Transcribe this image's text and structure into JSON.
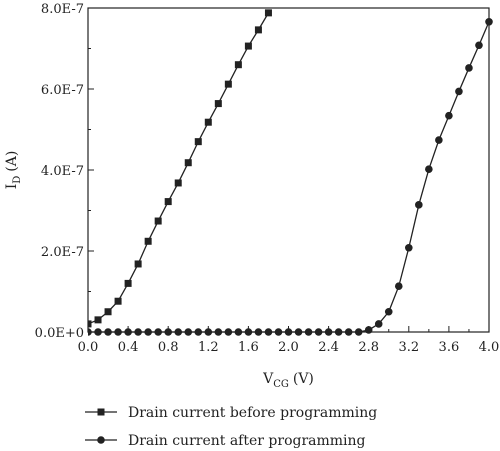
{
  "chart_data": {
    "type": "line",
    "title": "",
    "xlabel": "V_CG (V)",
    "xlabel_main": "V",
    "xlabel_sub": "CG",
    "xlabel_unit": "(V)",
    "ylabel": "I_D (A)",
    "ylabel_main": "I",
    "ylabel_sub": "D",
    "ylabel_unit": "(A)",
    "xlim": [
      0.0,
      4.0
    ],
    "ylim": [
      0.0,
      8e-07
    ],
    "x_ticks": [
      0.0,
      0.4,
      0.8,
      1.2,
      1.6,
      2.0,
      2.4,
      2.8,
      3.2,
      3.6,
      4.0
    ],
    "x_tick_labels": [
      "0.0",
      "0.4",
      "0.8",
      "1.2",
      "1.6",
      "2.0",
      "2.4",
      "2.8",
      "3.2",
      "3.6",
      "4.0"
    ],
    "y_ticks": [
      0.0,
      2e-07,
      4e-07,
      6e-07,
      8e-07
    ],
    "y_tick_labels": [
      "0.0E+0",
      "2.0E-7",
      "4.0E-7",
      "6.0E-7",
      "8.0E-7"
    ],
    "grid": false,
    "legend_position": "bottom",
    "series": [
      {
        "name": "Drain current before programming",
        "marker": "square",
        "color": "#222222",
        "x": [
          0.0,
          0.1,
          0.2,
          0.3,
          0.4,
          0.5,
          0.6,
          0.7,
          0.8,
          0.9,
          1.0,
          1.1,
          1.2,
          1.3,
          1.4,
          1.5,
          1.6,
          1.7,
          1.8
        ],
        "y": [
          2e-08,
          3e-08,
          5e-08,
          7.6e-08,
          1.2e-07,
          1.68e-07,
          2.24e-07,
          2.74e-07,
          3.22e-07,
          3.68e-07,
          4.18e-07,
          4.7e-07,
          5.18e-07,
          5.64e-07,
          6.12e-07,
          6.6e-07,
          7.06e-07,
          7.46e-07,
          7.88e-07
        ]
      },
      {
        "name": "Drain current after programming",
        "marker": "circle",
        "color": "#222222",
        "x": [
          0.0,
          0.1,
          0.2,
          0.3,
          0.4,
          0.5,
          0.6,
          0.7,
          0.8,
          0.9,
          1.0,
          1.1,
          1.2,
          1.3,
          1.4,
          1.5,
          1.6,
          1.7,
          1.8,
          1.9,
          2.0,
          2.1,
          2.2,
          2.3,
          2.4,
          2.5,
          2.6,
          2.7,
          2.8,
          2.9,
          3.0,
          3.1,
          3.2,
          3.3,
          3.4,
          3.5,
          3.6,
          3.7,
          3.8,
          3.9,
          4.0
        ],
        "y": [
          0,
          0,
          0,
          0,
          0,
          0,
          0,
          0,
          0,
          0,
          0,
          0,
          0,
          0,
          0,
          0,
          0,
          0,
          0,
          0,
          0,
          0,
          0,
          0,
          0,
          0,
          0,
          0,
          5e-09,
          2e-08,
          5e-08,
          1.13e-07,
          2.08e-07,
          3.14e-07,
          4.02e-07,
          4.74e-07,
          5.34e-07,
          5.94e-07,
          6.52e-07,
          7.08e-07,
          7.66e-07
        ]
      }
    ]
  }
}
